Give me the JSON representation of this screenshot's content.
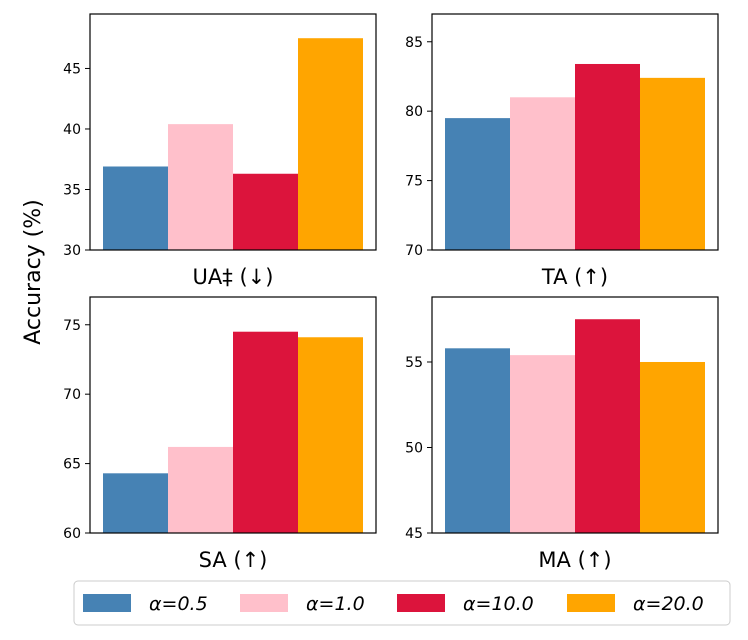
{
  "chart_data": {
    "type": "bar",
    "ylabel": "Accuracy (%)",
    "series": [
      {
        "name": "α=0.5",
        "color": "#4682b4"
      },
      {
        "name": "α=1.0",
        "color": "#ffc0cb"
      },
      {
        "name": "α=10.0",
        "color": "#dc143c"
      },
      {
        "name": "α=20.0",
        "color": "#ffa500"
      }
    ],
    "panels": [
      {
        "title": "UA‡ (↓)",
        "ylim": [
          30,
          49.5
        ],
        "yticks": [
          30,
          35,
          40,
          45
        ],
        "values": [
          36.9,
          40.4,
          36.3,
          47.5
        ]
      },
      {
        "title": "TA (↑)",
        "ylim": [
          70,
          87
        ],
        "yticks": [
          70,
          75,
          80,
          85
        ],
        "values": [
          79.5,
          81.0,
          83.4,
          82.4
        ]
      },
      {
        "title": "SA (↑)",
        "ylim": [
          60,
          77
        ],
        "yticks": [
          60,
          65,
          70,
          75
        ],
        "values": [
          64.3,
          66.2,
          74.5,
          74.1
        ]
      },
      {
        "title": "MA (↑)",
        "ylim": [
          45,
          58.8
        ],
        "yticks": [
          45,
          50,
          55
        ],
        "values": [
          55.8,
          55.4,
          57.5,
          55.0
        ]
      }
    ]
  }
}
